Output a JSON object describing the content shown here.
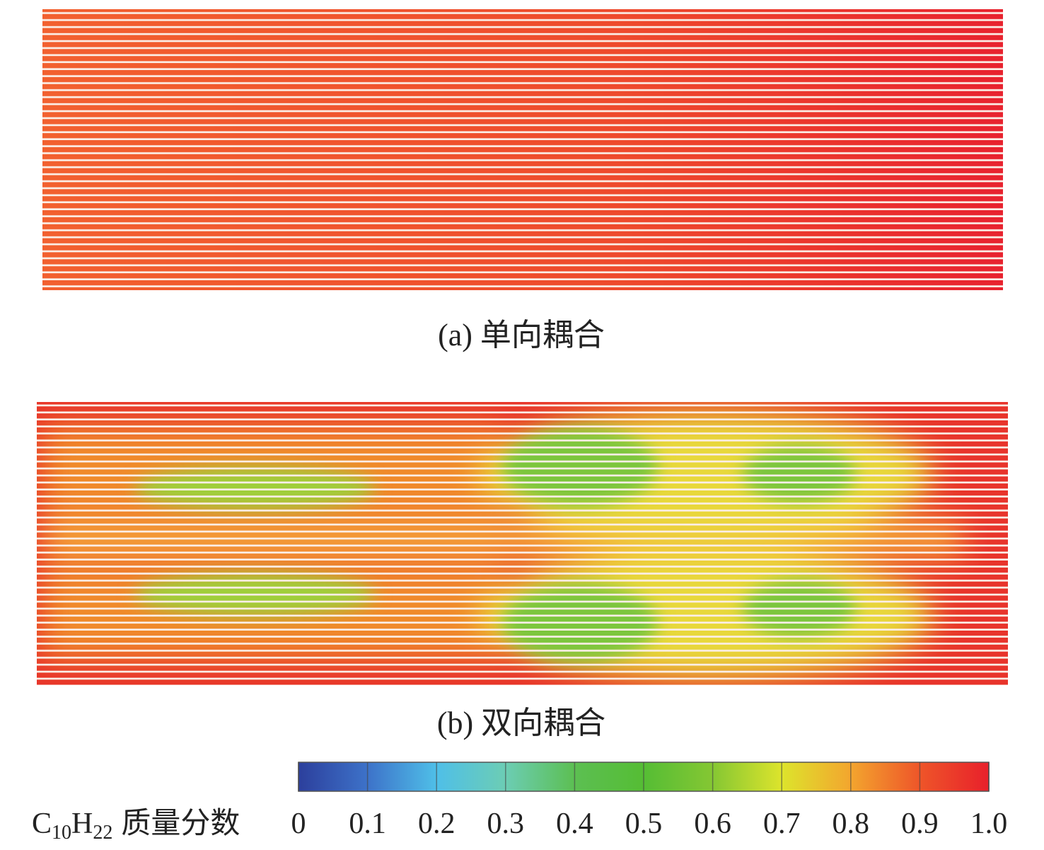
{
  "panels": [
    {
      "caption": "(a) 单向耦合"
    },
    {
      "caption": "(b) 双向耦合"
    }
  ],
  "colorbar": {
    "label": [
      "C",
      "10",
      "H",
      "22",
      "质量分数"
    ],
    "lim": [
      0,
      1
    ],
    "ticks": [
      0,
      0.1,
      0.2,
      0.3,
      0.4,
      0.5,
      0.6,
      0.7,
      0.8,
      0.9,
      {
        "value": 1,
        "label": "1.0"
      }
    ]
  }
}
